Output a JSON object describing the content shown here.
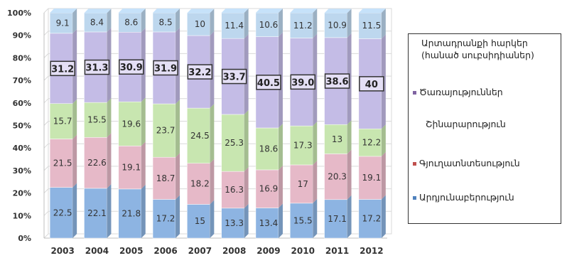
{
  "chart_data": {
    "type": "bar",
    "stacked": true,
    "percent": true,
    "categories": [
      "2003",
      "2004",
      "2005",
      "2006",
      "2007",
      "2008",
      "2009",
      "2010",
      "2011",
      "2012"
    ],
    "series": [
      {
        "name": "Արդյունաբերություն",
        "color": "#8DB4E2",
        "values": [
          22.5,
          22.1,
          21.8,
          17.2,
          15,
          13.3,
          13.4,
          15.5,
          17.1,
          17.2
        ]
      },
      {
        "name": "Գյուղատնտեսություն",
        "color": "#E6B9C8",
        "values": [
          21.5,
          22.6,
          19.1,
          18.7,
          18.2,
          16.3,
          16.9,
          17,
          20.3,
          19.1
        ]
      },
      {
        "name": "Շինարարություն",
        "color": "#C8E6B0",
        "values": [
          15.7,
          15.5,
          19.6,
          23.7,
          24.5,
          25.3,
          18.6,
          17.3,
          13,
          12.2
        ]
      },
      {
        "name": "Ծառայություններ",
        "color": "#C4BCE6",
        "values": [
          31.2,
          31.3,
          30.9,
          31.9,
          32.2,
          33.7,
          40.5,
          39.0,
          38.6,
          40
        ]
      },
      {
        "name": "",
        "color": "#BDD7EE",
        "values": [
          9.1,
          8.4,
          8.6,
          8.5,
          10,
          11.4,
          10.6,
          11.2,
          10.9,
          11.5
        ]
      }
    ],
    "data_labels": {
      "s0": [
        "22.5",
        "22.1",
        "21.8",
        "17.2",
        "15",
        "13.3",
        "13.4",
        "15.5",
        "17.1",
        "17.2"
      ],
      "s1": [
        "21.5",
        "22.6",
        "19.1",
        "18.7",
        "18.2",
        "16.3",
        "16.9",
        "17",
        "20.3",
        "19.1"
      ],
      "s2": [
        "15.7",
        "15.5",
        "19.6",
        "23.7",
        "24.5",
        "25.3",
        "18.6",
        "17.3",
        "13",
        "12.2"
      ],
      "s3": [
        "31.2",
        "31.3",
        "30.9",
        "31.9",
        "32.2",
        "33.7",
        "40.5",
        "39.0",
        "38.6",
        "40"
      ],
      "s4": [
        "9.1",
        "8.4",
        "8.6",
        "8.5",
        "10",
        "11.4",
        "10.6",
        "11.2",
        "10.9",
        "11.5"
      ]
    },
    "y_ticks": [
      "0%",
      "10%",
      "20%",
      "30%",
      "40%",
      "50%",
      "60%",
      "70%",
      "80%",
      "90%",
      "100%"
    ],
    "ylim": [
      0,
      100
    ],
    "grid": true,
    "legend_position": "right",
    "legend": {
      "title": "Արտադրանքի հարկեր (հանած սուբսիդիաներ)",
      "items": [
        {
          "label": "Ծառայություններ",
          "color": "#8064A2",
          "marker": true
        },
        {
          "label": "Շինարարություն",
          "color": "#9BBB59",
          "marker": false
        },
        {
          "label": "Գյուղատնտեսություն",
          "color": "#C0504D",
          "marker": true
        },
        {
          "label": "Արդյունաբերություն",
          "color": "#4F81BD",
          "marker": true
        }
      ]
    }
  }
}
